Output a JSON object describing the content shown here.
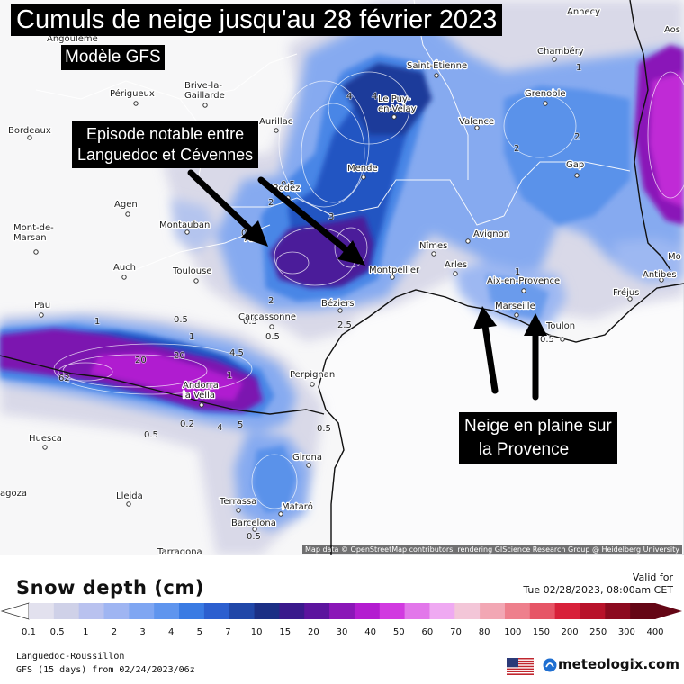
{
  "title": "Cumuls de neige jusqu'au 28 février 2023",
  "subtitle": "Modèle GFS",
  "annotations": {
    "cevennes": "Episode notable entre\nLanguedoc et Cévennes",
    "provence": "Neige en plaine sur\n   la Provence"
  },
  "attribution": "Map data © OpenStreetMap contributors, rendering GIScience Research Group @ Heidelberg University",
  "cities": {
    "angouleme": "Angoulême",
    "perigueux": "Périgueux",
    "brive": "Brive-la-\nGaillarde",
    "bordeaux": "Bordeaux",
    "aurillac": "Aurillac",
    "saint_etienne": "Saint-Étienne",
    "le_puy": "Le Puy-\nen-Velay",
    "valence": "Valence",
    "grenoble": "Grenoble",
    "chambery": "Chambéry",
    "annecy": "Annecy",
    "aosta": "Aos",
    "gap": "Gap",
    "mende": "Mende",
    "rodez": "Rodez",
    "agen": "Agen",
    "montauban": "Montauban",
    "mont_de_marsan": "Mont-de-\nMarsan",
    "albi": "Albi",
    "nimes": "Nîmes",
    "avignon": "Avignon",
    "arles": "Arles",
    "montpellier": "Montpellier",
    "aix": "Aix-en-Provence",
    "marseille": "Marseille",
    "toulon": "Toulon",
    "antibes": "Antibes",
    "frejus": "Fréjus",
    "monaco": "Mo",
    "auch": "Auch",
    "toulouse": "Toulouse",
    "pau": "Pau",
    "carcassonne": "Carcassonne",
    "beziers": "Béziers",
    "perpignan": "Perpignan",
    "andorra": "Andorra\nla Vella",
    "huesca": "Huesca",
    "girona": "Girona",
    "lleida": "Lleida",
    "terrassa": "Terrassa",
    "mataro": "Mataró",
    "barcelona": "Barcelona",
    "tarragona": "Tarragona",
    "zaragoza": "agoza"
  },
  "contour_labels": {
    "l1": "0.5",
    "l2": "1",
    "l3": "2",
    "l4": "4",
    "l5": "0.5",
    "l6": "1",
    "l7": "2",
    "l8": "0.5",
    "l9": "1",
    "l10": "4.5",
    "l11": "0.2",
    "l12": "0.5",
    "l13": "0.5",
    "l14": "2",
    "l15": "2",
    "l16": "0.5",
    "l17": "1",
    "l18": "3",
    "l19": "0.5",
    "l20": "4",
    "l21": "2.5",
    "l22": "0.5",
    "l23": "1",
    "l24": "0.5",
    "l25": "62",
    "l26": "20",
    "l27": "20",
    "l28": "5",
    "l29": "4"
  },
  "legend": {
    "title": "Snow depth (cm)",
    "valid_label": "Valid for",
    "valid_date": "Tue 02/28/2023, 08:00am CET",
    "ticks": [
      "0.1",
      "0.5",
      "1",
      "2",
      "3",
      "4",
      "5",
      "7",
      "10",
      "15",
      "20",
      "30",
      "40",
      "50",
      "60",
      "70",
      "80",
      "100",
      "150",
      "200",
      "250",
      "300",
      "400"
    ],
    "colors": [
      "#e2e1ee",
      "#cfd1e8",
      "#b9c2ef",
      "#9fb5f2",
      "#7fa6f2",
      "#5f95ee",
      "#3a7be3",
      "#2c5fcf",
      "#2047a8",
      "#1b2f85",
      "#3a1a8c",
      "#5c149e",
      "#8a16b7",
      "#b31cd0",
      "#d13ae0",
      "#e277ea",
      "#efa9f2",
      "#f3c6d8",
      "#f2a7b4",
      "#ee7f8c",
      "#e65566",
      "#d8213a",
      "#b8122a",
      "#8c0a1f",
      "#640615"
    ],
    "region": "Languedoc-Roussillon",
    "run": "GFS (15 days) from  02/24/2023/06z",
    "brand": "meteologix.com"
  }
}
